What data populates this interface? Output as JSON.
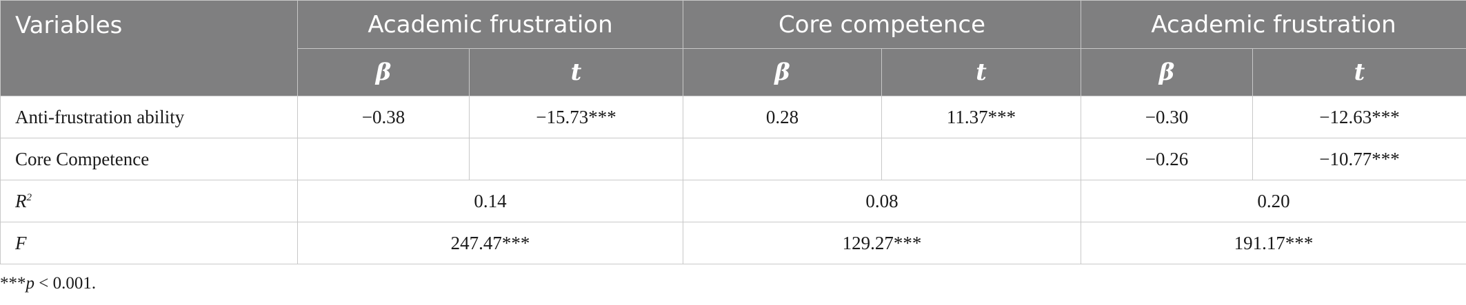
{
  "header": {
    "variables": "Variables",
    "groups": [
      "Academic frustration",
      "Core competence",
      "Academic frustration"
    ],
    "beta": "β",
    "t": "t"
  },
  "rows": [
    {
      "label": "Anti-frustration ability",
      "cells": [
        "−0.38",
        "−15.73***",
        "0.28",
        "11.37***",
        "−0.30",
        "−12.63***"
      ]
    },
    {
      "label": "Core Competence",
      "cells": [
        "",
        "",
        "",
        "",
        "−0.26",
        "−10.77***"
      ]
    }
  ],
  "summary": [
    {
      "label": "R",
      "sup": "2",
      "values": [
        "0.14",
        "0.08",
        "0.20"
      ]
    },
    {
      "label": "F",
      "values": [
        "247.47***",
        "129.27***",
        "191.17***"
      ]
    }
  ],
  "note": {
    "stars": "***",
    "p": "p",
    "text": " < 0.001."
  }
}
